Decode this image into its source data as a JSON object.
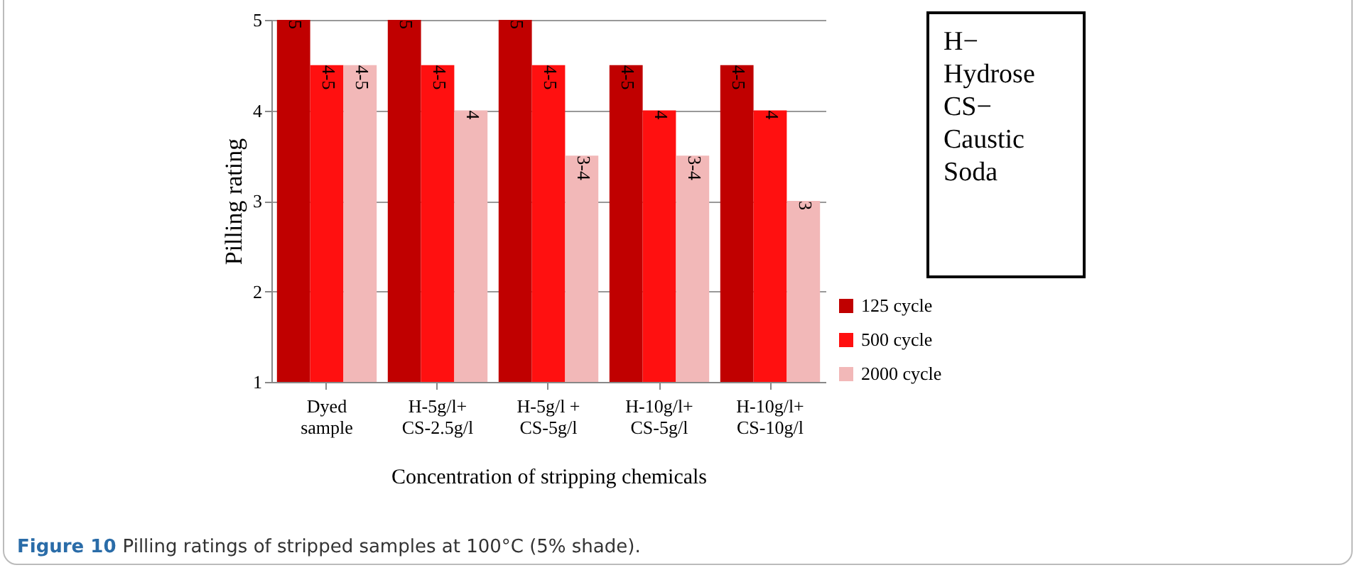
{
  "chart_data": {
    "type": "bar",
    "xlabel": "Concentration of stripping chemicals",
    "ylabel": "Pilling rating",
    "categories": [
      "Dyed\nsample",
      "H-5g/l+\nCS-2.5g/l",
      "H-5g/l +\nCS-5g/l",
      "H-10g/l+\nCS-5g/l",
      "H-10g/l+\nCS-10g/l"
    ],
    "series": [
      {
        "name": "125 cycle",
        "color": "#c00000",
        "values": [
          5,
          5,
          5,
          4.5,
          4.5
        ],
        "value_labels": [
          "5",
          "5",
          "5",
          "4-5",
          "4-5"
        ]
      },
      {
        "name": "500 cycle",
        "color": "#ff1010",
        "values": [
          4.5,
          4.5,
          4.5,
          4,
          4
        ],
        "value_labels": [
          "4-5",
          "4-5",
          "4-5",
          "4",
          "4"
        ]
      },
      {
        "name": "2000 cycle",
        "color": "#f2b8b8",
        "values": [
          4.5,
          4,
          3.5,
          3.5,
          3
        ],
        "value_labels": [
          "4-5",
          "4",
          "3-4",
          "3-4",
          "3"
        ]
      }
    ],
    "ylim": [
      1,
      5
    ],
    "yticks": [
      1,
      2,
      3,
      4,
      5
    ],
    "grid": "y",
    "legend": "right",
    "annotations": [
      "H− Hydrose CS− Caustic Soda",
      "Figure 10 Pilling ratings of stripped samples at 100°C (5% shade)."
    ]
  }
}
